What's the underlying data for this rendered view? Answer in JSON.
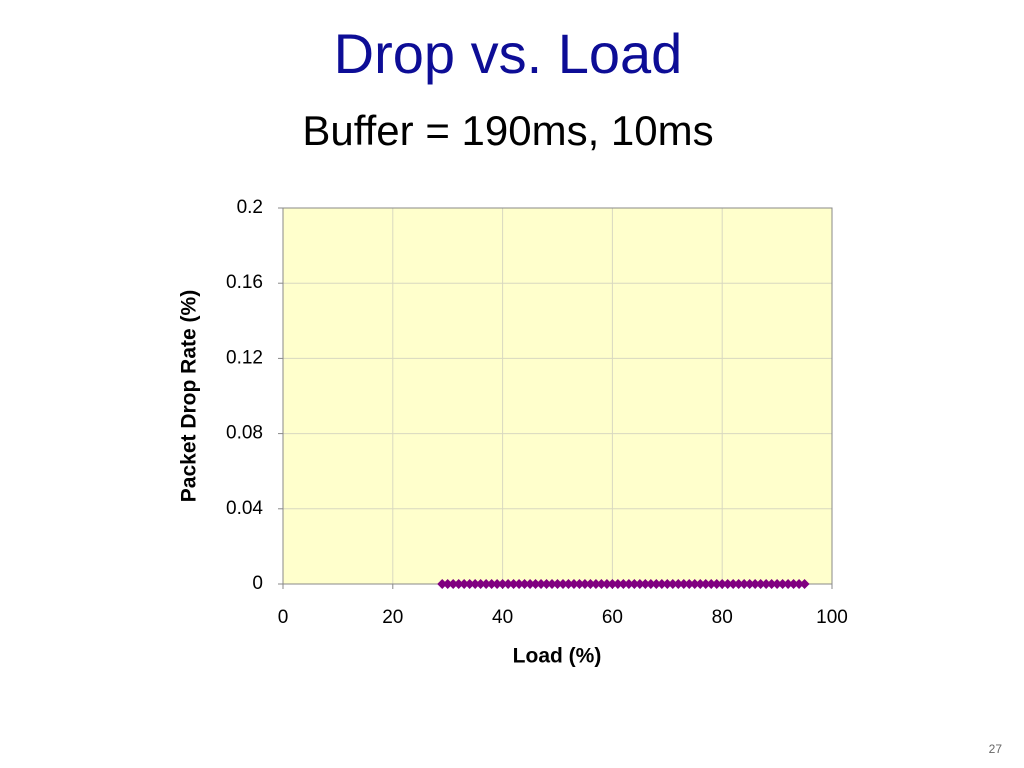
{
  "title": "Drop vs. Load",
  "subtitle": "Buffer = 190ms, 10ms",
  "page_number": "27",
  "chart_data": {
    "type": "scatter",
    "xlabel": "Load (%)",
    "ylabel": "Packet Drop Rate (%)",
    "color": "#800080",
    "grid": true,
    "xlim": [
      0,
      100
    ],
    "xticks": [
      0,
      20,
      40,
      60,
      80,
      100
    ],
    "ylim": [
      0,
      0.2
    ],
    "yticks": [
      0,
      0.04,
      0.08,
      0.12,
      0.16,
      0.2
    ],
    "x": [
      29,
      30,
      31,
      32,
      33,
      34,
      35,
      36,
      37,
      38,
      39,
      40,
      41,
      42,
      43,
      44,
      45,
      46,
      47,
      48,
      49,
      50,
      51,
      52,
      53,
      54,
      55,
      56,
      57,
      58,
      59,
      60,
      61,
      62,
      63,
      64,
      65,
      66,
      67,
      68,
      69,
      70,
      71,
      72,
      73,
      74,
      75,
      76,
      77,
      78,
      79,
      80,
      81,
      82,
      83,
      84,
      85,
      86,
      87,
      88,
      89,
      90,
      91,
      92,
      93,
      94,
      95
    ],
    "values": [
      0,
      0,
      0,
      0,
      0,
      0,
      0,
      0,
      0,
      0,
      0,
      0,
      0,
      0,
      0,
      0,
      0,
      0,
      0,
      0,
      0,
      0,
      0,
      0,
      0,
      0,
      0,
      0,
      0,
      0,
      0,
      0,
      0,
      0,
      0,
      0,
      0,
      0,
      0,
      0,
      0,
      0,
      0,
      0,
      0,
      0,
      0,
      0,
      0,
      0,
      0,
      0,
      0,
      0,
      0,
      0,
      0,
      0,
      0,
      0,
      0,
      0,
      0,
      0,
      0,
      0,
      0
    ]
  }
}
